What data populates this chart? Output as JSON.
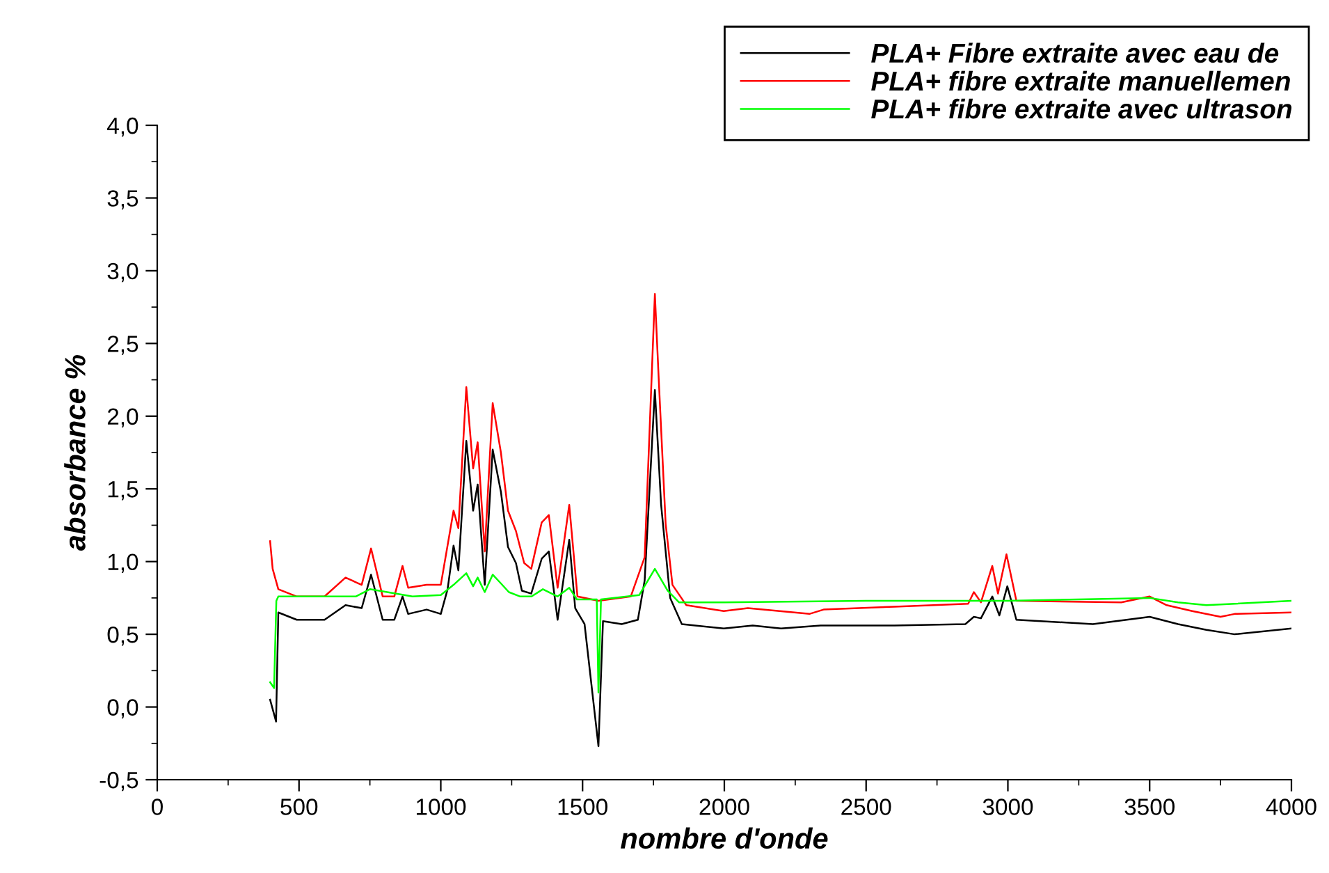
{
  "chart_data": {
    "type": "line",
    "xlabel": "nombre d'onde",
    "ylabel": "absorbance %",
    "xlim": [
      0,
      4000
    ],
    "ylim": [
      -0.5,
      4.0
    ],
    "xticks": [
      0,
      {
        "value": 250,
        "label": null
      },
      500,
      {
        "value": 750,
        "label": null
      },
      1000,
      {
        "value": 1250,
        "label": null
      },
      1500,
      {
        "value": 1750,
        "label": null
      },
      2000,
      {
        "value": 2250,
        "label": null
      },
      2500,
      {
        "value": 2750,
        "label": null
      },
      3000,
      {
        "value": 3250,
        "label": null
      },
      3500,
      {
        "value": 3750,
        "label": null
      },
      4000
    ],
    "yticks": [
      {
        "value": -0.5,
        "label": "-0,5"
      },
      {
        "value": -0.25,
        "label": null
      },
      {
        "value": 0.0,
        "label": "0,0"
      },
      {
        "value": 0.25,
        "label": null
      },
      {
        "value": 0.5,
        "label": "0,5"
      },
      {
        "value": 0.75,
        "label": null
      },
      {
        "value": 1.0,
        "label": "1,0"
      },
      {
        "value": 1.25,
        "label": null
      },
      {
        "value": 1.5,
        "label": "1,5"
      },
      {
        "value": 1.75,
        "label": null
      },
      {
        "value": 2.0,
        "label": "2,0"
      },
      {
        "value": 2.25,
        "label": null
      },
      {
        "value": 2.5,
        "label": "2,5"
      },
      {
        "value": 2.75,
        "label": null
      },
      {
        "value": 3.0,
        "label": "3,0"
      },
      {
        "value": 3.25,
        "label": null
      },
      {
        "value": 3.5,
        "label": "3,5"
      },
      {
        "value": 3.75,
        "label": null
      },
      {
        "value": 4.0,
        "label": "4,0"
      }
    ],
    "grid": false,
    "legend": "top right",
    "marker": "none",
    "line_style": "solid",
    "series": [
      {
        "name": "PLA+ Fibre extraite avec eau de",
        "color": "#000000",
        "x": [
          398,
          419,
          427,
          492,
          590,
          664,
          721,
          754,
          795,
          836,
          865,
          885,
          950,
          1000,
          1024,
          1045,
          1062,
          1090,
          1114,
          1130,
          1155,
          1183,
          1212,
          1237,
          1265,
          1286,
          1319,
          1356,
          1381,
          1412,
          1453,
          1474,
          1507,
          1556,
          1572,
          1638,
          1695,
          1719,
          1755,
          1777,
          1809,
          1850,
          1998,
          2100,
          2200,
          2340,
          2600,
          2850,
          2880,
          2905,
          2945,
          2970,
          2998,
          3030,
          3300,
          3500,
          3600,
          3700,
          3800,
          4000
        ],
        "values": [
          0.05,
          -0.1,
          0.65,
          0.6,
          0.6,
          0.7,
          0.68,
          0.91,
          0.6,
          0.6,
          0.76,
          0.64,
          0.67,
          0.64,
          0.81,
          1.11,
          0.94,
          1.83,
          1.35,
          1.53,
          0.84,
          1.77,
          1.48,
          1.1,
          0.99,
          0.8,
          0.78,
          1.02,
          1.07,
          0.6,
          1.15,
          0.68,
          0.57,
          -0.27,
          0.59,
          0.57,
          0.6,
          0.87,
          2.18,
          1.39,
          0.75,
          0.57,
          0.54,
          0.56,
          0.54,
          0.56,
          0.56,
          0.57,
          0.62,
          0.61,
          0.76,
          0.63,
          0.83,
          0.6,
          0.57,
          0.62,
          0.57,
          0.53,
          0.5,
          0.54
        ]
      },
      {
        "name": "PLA+ fibre extraite manuellemen",
        "color": "#ff0000",
        "x": [
          398,
          407,
          427,
          492,
          590,
          664,
          721,
          754,
          795,
          836,
          865,
          885,
          950,
          1000,
          1045,
          1062,
          1090,
          1114,
          1130,
          1155,
          1183,
          1212,
          1237,
          1265,
          1294,
          1319,
          1356,
          1381,
          1412,
          1453,
          1482,
          1556,
          1670,
          1719,
          1755,
          1768,
          1793,
          1817,
          1866,
          1998,
          2083,
          2300,
          2350,
          2600,
          2860,
          2880,
          2905,
          2945,
          2965,
          2995,
          3030,
          3400,
          3500,
          3560,
          3650,
          3750,
          3800,
          4000
        ],
        "values": [
          1.14,
          0.95,
          0.81,
          0.76,
          0.76,
          0.89,
          0.84,
          1.09,
          0.76,
          0.76,
          0.97,
          0.82,
          0.84,
          0.84,
          1.35,
          1.23,
          2.2,
          1.64,
          1.82,
          1.07,
          2.09,
          1.75,
          1.35,
          1.21,
          0.99,
          0.95,
          1.27,
          1.32,
          0.82,
          1.39,
          0.76,
          0.73,
          0.76,
          1.03,
          2.84,
          2.28,
          1.26,
          0.84,
          0.7,
          0.66,
          0.68,
          0.64,
          0.67,
          0.69,
          0.71,
          0.79,
          0.72,
          0.97,
          0.78,
          1.05,
          0.73,
          0.72,
          0.76,
          0.7,
          0.66,
          0.62,
          0.64,
          0.65
        ]
      },
      {
        "name": "PLA+ fibre extraite avec ultrason",
        "color": "#00ff00",
        "x": [
          398,
          412,
          420,
          427,
          500,
          700,
          750,
          900,
          1000,
          1045,
          1090,
          1114,
          1130,
          1155,
          1183,
          1212,
          1240,
          1280,
          1320,
          1360,
          1412,
          1453,
          1480,
          1550,
          1556,
          1565,
          1700,
          1755,
          1800,
          1840,
          2000,
          2500,
          3000,
          3500,
          3600,
          3700,
          4000
        ],
        "values": [
          0.17,
          0.13,
          0.73,
          0.76,
          0.76,
          0.76,
          0.81,
          0.76,
          0.77,
          0.84,
          0.92,
          0.83,
          0.89,
          0.79,
          0.91,
          0.85,
          0.79,
          0.76,
          0.76,
          0.81,
          0.76,
          0.82,
          0.74,
          0.74,
          0.1,
          0.74,
          0.77,
          0.95,
          0.8,
          0.72,
          0.72,
          0.73,
          0.73,
          0.75,
          0.72,
          0.7,
          0.73
        ]
      }
    ]
  }
}
